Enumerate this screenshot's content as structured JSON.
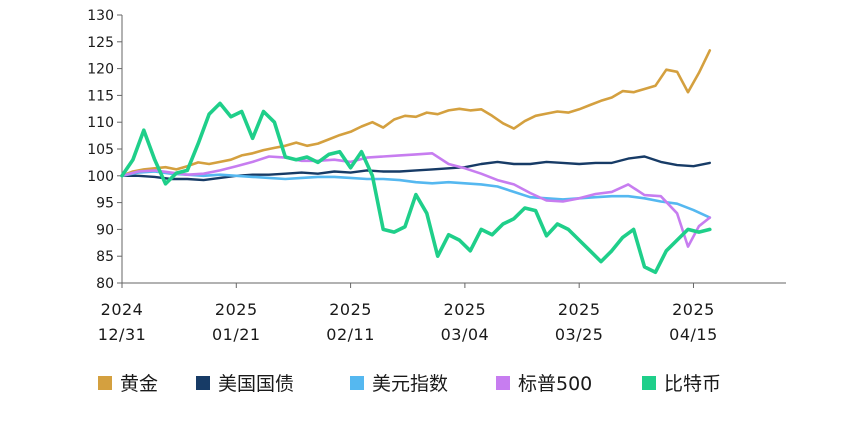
{
  "chart_data": {
    "type": "line",
    "ylim": [
      80,
      130
    ],
    "yticks": [
      80,
      85,
      90,
      95,
      100,
      105,
      110,
      115,
      120,
      125,
      130
    ],
    "grid": false,
    "legend_position": "bottom",
    "x_ticks": [
      {
        "year": "2024",
        "date": "12/31",
        "pos": 0
      },
      {
        "year": "2025",
        "date": "01/21",
        "pos": 21
      },
      {
        "year": "2025",
        "date": "02/11",
        "pos": 42
      },
      {
        "year": "2025",
        "date": "03/04",
        "pos": 63
      },
      {
        "year": "2025",
        "date": "03/25",
        "pos": 84
      },
      {
        "year": "2025",
        "date": "04/15",
        "pos": 105
      }
    ],
    "x_range": [
      0,
      122
    ],
    "series": [
      {
        "name": "黄金",
        "color": "#D4A03F",
        "x": [
          0,
          2,
          4,
          6,
          8,
          10,
          12,
          14,
          16,
          18,
          20,
          22,
          24,
          26,
          28,
          30,
          32,
          34,
          36,
          38,
          40,
          42,
          44,
          46,
          48,
          50,
          52,
          54,
          56,
          58,
          60,
          62,
          64,
          66,
          68,
          70,
          72,
          74,
          76,
          78,
          80,
          82,
          84,
          86,
          88,
          90,
          92,
          94,
          96,
          98,
          100,
          102,
          104,
          106,
          108
        ],
        "values": [
          100,
          100.8,
          101.2,
          101.4,
          101.6,
          101.2,
          101.8,
          102.5,
          102.2,
          102.6,
          103,
          103.8,
          104.2,
          104.8,
          105.2,
          105.6,
          106.2,
          105.6,
          106,
          106.8,
          107.6,
          108.2,
          109.2,
          110,
          109,
          110.5,
          111.2,
          111,
          111.8,
          111.5,
          112.2,
          112.5,
          112.2,
          112.4,
          111.2,
          109.8,
          108.8,
          110.2,
          111.2,
          111.6,
          112,
          111.8,
          112.4,
          113.2,
          114,
          114.6,
          115.8,
          115.6,
          116.2,
          116.8,
          119.8,
          119.4,
          115.6,
          119.2,
          123.4
        ]
      },
      {
        "name": "美国国债",
        "color": "#173B66",
        "x": [
          0,
          3,
          6,
          9,
          12,
          15,
          18,
          21,
          24,
          27,
          30,
          33,
          36,
          39,
          42,
          45,
          48,
          51,
          54,
          57,
          60,
          63,
          66,
          69,
          72,
          75,
          78,
          81,
          84,
          87,
          90,
          93,
          96,
          99,
          102,
          105,
          108
        ],
        "values": [
          100,
          100,
          99.8,
          99.4,
          99.4,
          99.2,
          99.6,
          100,
          100.2,
          100.2,
          100.4,
          100.6,
          100.4,
          100.8,
          100.6,
          101,
          100.8,
          100.8,
          101,
          101.2,
          101.4,
          101.6,
          102.2,
          102.6,
          102.2,
          102.2,
          102.6,
          102.4,
          102.2,
          102.4,
          102.4,
          103.2,
          103.6,
          102.6,
          102,
          101.8,
          102.4
        ]
      },
      {
        "name": "美元指数",
        "color": "#55B8F0",
        "x": [
          0,
          3,
          6,
          9,
          12,
          15,
          18,
          21,
          24,
          27,
          30,
          33,
          36,
          39,
          42,
          45,
          48,
          51,
          54,
          57,
          60,
          63,
          66,
          69,
          72,
          75,
          78,
          81,
          84,
          87,
          90,
          93,
          96,
          99,
          102,
          105,
          108
        ],
        "values": [
          100,
          100.6,
          100.8,
          100.4,
          100.2,
          100,
          100.2,
          100,
          99.8,
          99.6,
          99.4,
          99.6,
          99.8,
          99.8,
          99.6,
          99.4,
          99.4,
          99.2,
          98.8,
          98.6,
          98.8,
          98.6,
          98.4,
          98,
          97,
          96,
          95.8,
          95.6,
          95.8,
          96,
          96.2,
          96.2,
          95.8,
          95.2,
          94.8,
          93.6,
          92.2
        ]
      },
      {
        "name": "标普500",
        "color": "#C77DF0",
        "x": [
          0,
          3,
          6,
          9,
          12,
          15,
          18,
          21,
          24,
          27,
          30,
          33,
          36,
          39,
          42,
          45,
          48,
          51,
          54,
          57,
          60,
          63,
          66,
          69,
          72,
          75,
          78,
          81,
          84,
          87,
          90,
          93,
          96,
          99,
          102,
          104,
          106,
          108
        ],
        "values": [
          100,
          100.8,
          101,
          100.6,
          100.2,
          100.4,
          101,
          101.8,
          102.6,
          103.6,
          103.4,
          102.8,
          102.8,
          103,
          102.6,
          103.4,
          103.6,
          103.8,
          104,
          104.2,
          102.2,
          101.4,
          100.4,
          99.2,
          98.4,
          96.8,
          95.4,
          95.2,
          95.8,
          96.6,
          97,
          98.4,
          96.4,
          96.2,
          93,
          86.8,
          90.6,
          92.2
        ]
      },
      {
        "name": "比特币",
        "color": "#1FCF8A",
        "x": [
          0,
          2,
          4,
          6,
          8,
          10,
          12,
          14,
          16,
          18,
          20,
          22,
          24,
          26,
          28,
          30,
          32,
          34,
          36,
          38,
          40,
          42,
          44,
          46,
          48,
          50,
          52,
          54,
          56,
          58,
          60,
          62,
          64,
          66,
          68,
          70,
          72,
          74,
          76,
          78,
          80,
          82,
          84,
          86,
          88,
          90,
          92,
          94,
          96,
          98,
          100,
          102,
          104,
          106,
          108
        ],
        "values": [
          100,
          103,
          108.5,
          103,
          98.5,
          100.5,
          101,
          106,
          111.5,
          113.5,
          111,
          112,
          107,
          112,
          110,
          103.5,
          103,
          103.5,
          102.5,
          104,
          104.5,
          101.5,
          104.5,
          100,
          90,
          89.5,
          90.5,
          96.5,
          93,
          85,
          89,
          88,
          86,
          90,
          89,
          91,
          92,
          94,
          93.5,
          88.8,
          91,
          90,
          88,
          86,
          84,
          86,
          88.5,
          90,
          83,
          82,
          86,
          88,
          90,
          89.5,
          90
        ]
      }
    ]
  }
}
